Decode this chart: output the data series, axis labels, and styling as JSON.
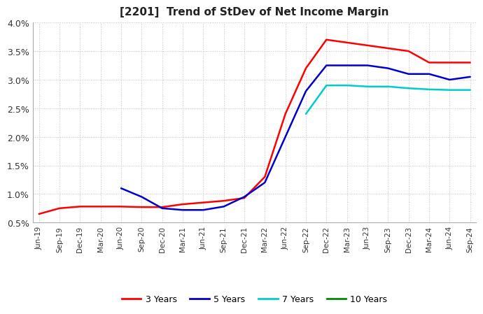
{
  "title": "[2201]  Trend of StDev of Net Income Margin",
  "background_color": "#ffffff",
  "plot_background": "#ffffff",
  "grid_color": "#bbbbbb",
  "x_labels": [
    "Jun-19",
    "Sep-19",
    "Dec-19",
    "Mar-20",
    "Jun-20",
    "Sep-20",
    "Dec-20",
    "Mar-21",
    "Jun-21",
    "Sep-21",
    "Dec-21",
    "Mar-22",
    "Jun-22",
    "Sep-22",
    "Dec-22",
    "Mar-23",
    "Jun-23",
    "Sep-23",
    "Dec-23",
    "Mar-24",
    "Jun-24",
    "Sep-24"
  ],
  "series": {
    "3 Years": {
      "color": "#ff0000",
      "values": [
        0.0065,
        0.0075,
        0.0078,
        0.0078,
        0.0078,
        0.0077,
        0.0077,
        0.0082,
        0.0085,
        0.0088,
        0.0093,
        0.013,
        0.024,
        0.032,
        0.037,
        0.0365,
        0.036,
        0.0355,
        0.035,
        0.033,
        0.033,
        0.033
      ]
    },
    "5 Years": {
      "color": "#0000cc",
      "values": [
        null,
        null,
        null,
        null,
        0.011,
        0.0095,
        0.0075,
        0.0072,
        0.0072,
        0.0078,
        0.0095,
        0.012,
        0.02,
        0.028,
        0.0325,
        0.0325,
        0.0325,
        0.032,
        0.031,
        0.031,
        0.03,
        0.0305
      ]
    },
    "7 Years": {
      "color": "#00cccc",
      "values": [
        null,
        null,
        null,
        null,
        null,
        null,
        null,
        null,
        null,
        null,
        null,
        null,
        null,
        0.024,
        0.029,
        0.029,
        0.0288,
        0.0288,
        0.0285,
        0.0283,
        0.0282,
        0.0282
      ]
    },
    "10 Years": {
      "color": "#008800",
      "values": [
        null,
        null,
        null,
        null,
        null,
        null,
        null,
        null,
        null,
        null,
        null,
        null,
        null,
        null,
        null,
        null,
        null,
        null,
        null,
        null,
        null,
        null
      ]
    }
  },
  "ylim": [
    0.005,
    0.04
  ],
  "yticks": [
    0.005,
    0.01,
    0.015,
    0.02,
    0.025,
    0.03,
    0.035,
    0.04
  ],
  "ytick_labels": [
    "0.5%",
    "1.0%",
    "1.5%",
    "2.0%",
    "2.5%",
    "3.0%",
    "3.5%",
    "4.0%"
  ],
  "legend_entries": [
    "3 Years",
    "5 Years",
    "7 Years",
    "10 Years"
  ],
  "legend_colors": [
    "#ff0000",
    "#0000cc",
    "#00cccc",
    "#008800"
  ]
}
